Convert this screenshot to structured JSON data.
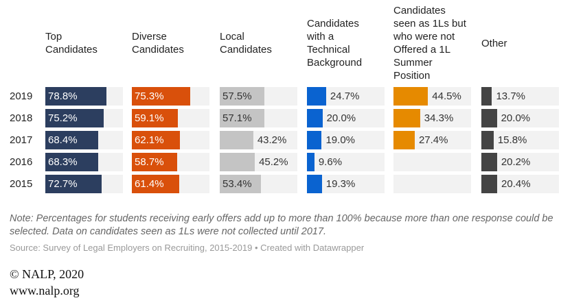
{
  "chart_data": {
    "type": "bar",
    "categories": [
      "2019",
      "2018",
      "2017",
      "2016",
      "2015"
    ],
    "xlim": [
      0,
      100
    ],
    "series": [
      {
        "name": "Top\nCandidates",
        "color": "#2c3e5f",
        "values": [
          78.8,
          75.2,
          68.4,
          68.3,
          72.7
        ],
        "labels": [
          "78.8%",
          "75.2%",
          "68.4%",
          "68.3%",
          "72.7%"
        ]
      },
      {
        "name": "Diverse\nCandidates",
        "color": "#d9500b",
        "values": [
          75.3,
          59.1,
          62.1,
          58.7,
          61.4
        ],
        "labels": [
          "75.3%",
          "59.1%",
          "62.1%",
          "58.7%",
          "61.4%"
        ]
      },
      {
        "name": "Local\nCandidates",
        "color": "#c4c4c4",
        "values": [
          57.5,
          57.1,
          43.2,
          45.2,
          53.4
        ],
        "labels": [
          "57.5%",
          "57.1%",
          "43.2%",
          "45.2%",
          "53.4%"
        ]
      },
      {
        "name": "Candidates\nwith a\nTechnical\nBackground",
        "color": "#0a63d0",
        "values": [
          24.7,
          20.0,
          19.0,
          9.6,
          19.3
        ],
        "labels": [
          "24.7%",
          "20.0%",
          "19.0%",
          "9.6%",
          "19.3%"
        ]
      },
      {
        "name": "Candidates\nseen as 1Ls but\nwho were not\nOffered a 1L\nSummer\nPosition",
        "color": "#e68a00",
        "values": [
          44.5,
          34.3,
          27.4,
          null,
          null
        ],
        "labels": [
          "44.5%",
          "34.3%",
          "27.4%",
          "",
          ""
        ]
      },
      {
        "name": "Other",
        "color": "#444444",
        "values": [
          13.7,
          20.0,
          15.8,
          20.2,
          20.4
        ],
        "labels": [
          "13.7%",
          "20.0%",
          "15.8%",
          "20.2%",
          "20.4%"
        ]
      }
    ]
  },
  "note": "Note: Percentages for students receiving early offers add up to more than 100% because more than one response could be selected. Data on candidates seen as 1Ls were not collected until 2017.",
  "source": "Source: Survey of Legal Employers on Recruiting, 2015-2019 • Created with Datawrapper",
  "copyright": "© NALP, 2020",
  "website": "www.nalp.org"
}
